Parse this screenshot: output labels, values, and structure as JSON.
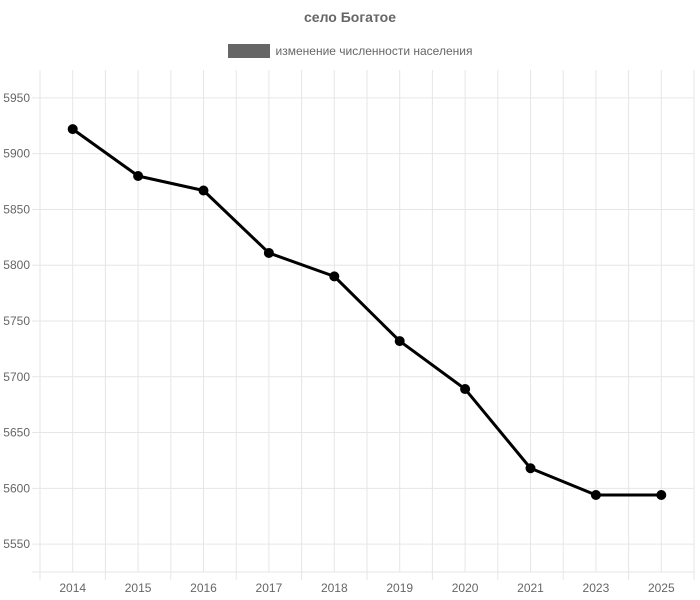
{
  "chart_data": {
    "type": "line",
    "title": "село Богатое",
    "categories": [
      "2014",
      "2015",
      "2016",
      "2017",
      "2018",
      "2019",
      "2020",
      "2021",
      "2023",
      "2025"
    ],
    "series": [
      {
        "name": "изменение численности населения",
        "values": [
          5922,
          5880,
          5867,
          5811,
          5790,
          5732,
          5689,
          5618,
          5594,
          5594
        ]
      }
    ],
    "ylim": [
      5525,
      5975
    ],
    "y_ticks": [
      5550,
      5600,
      5650,
      5700,
      5750,
      5800,
      5850,
      5900,
      5950
    ],
    "grid": true,
    "legend_position": "top"
  },
  "colors": {
    "line": "#000000",
    "legend_swatch": "#666666",
    "grid": "#e6e6e6",
    "text": "#666666"
  }
}
